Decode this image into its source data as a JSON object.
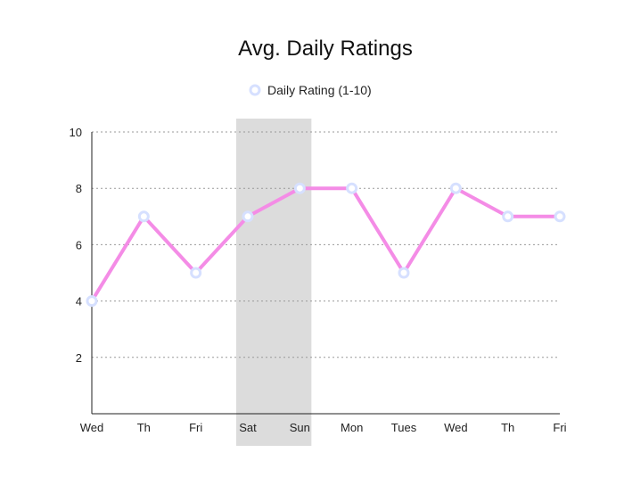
{
  "chart_data": {
    "type": "line",
    "title": "Avg. Daily Ratings",
    "xlabel": "",
    "ylabel": "",
    "categories": [
      "Wed",
      "Th",
      "Fri",
      "Sat",
      "Sun",
      "Mon",
      "Tues",
      "Wed",
      "Th",
      "Fri"
    ],
    "series": [
      {
        "name": "Daily Rating (1-10)",
        "values": [
          4,
          7,
          5,
          7,
          8,
          8,
          5,
          8,
          7,
          7
        ],
        "color": "#f48ce6",
        "marker_color": "#d6e0ff"
      }
    ],
    "ylim": [
      0,
      10
    ],
    "yticks": [
      2,
      4,
      6,
      8,
      10
    ],
    "grid": true,
    "legend": "top-center",
    "highlight": {
      "from": "Sat",
      "to": "Sun",
      "color": "#dcdcdc"
    }
  }
}
